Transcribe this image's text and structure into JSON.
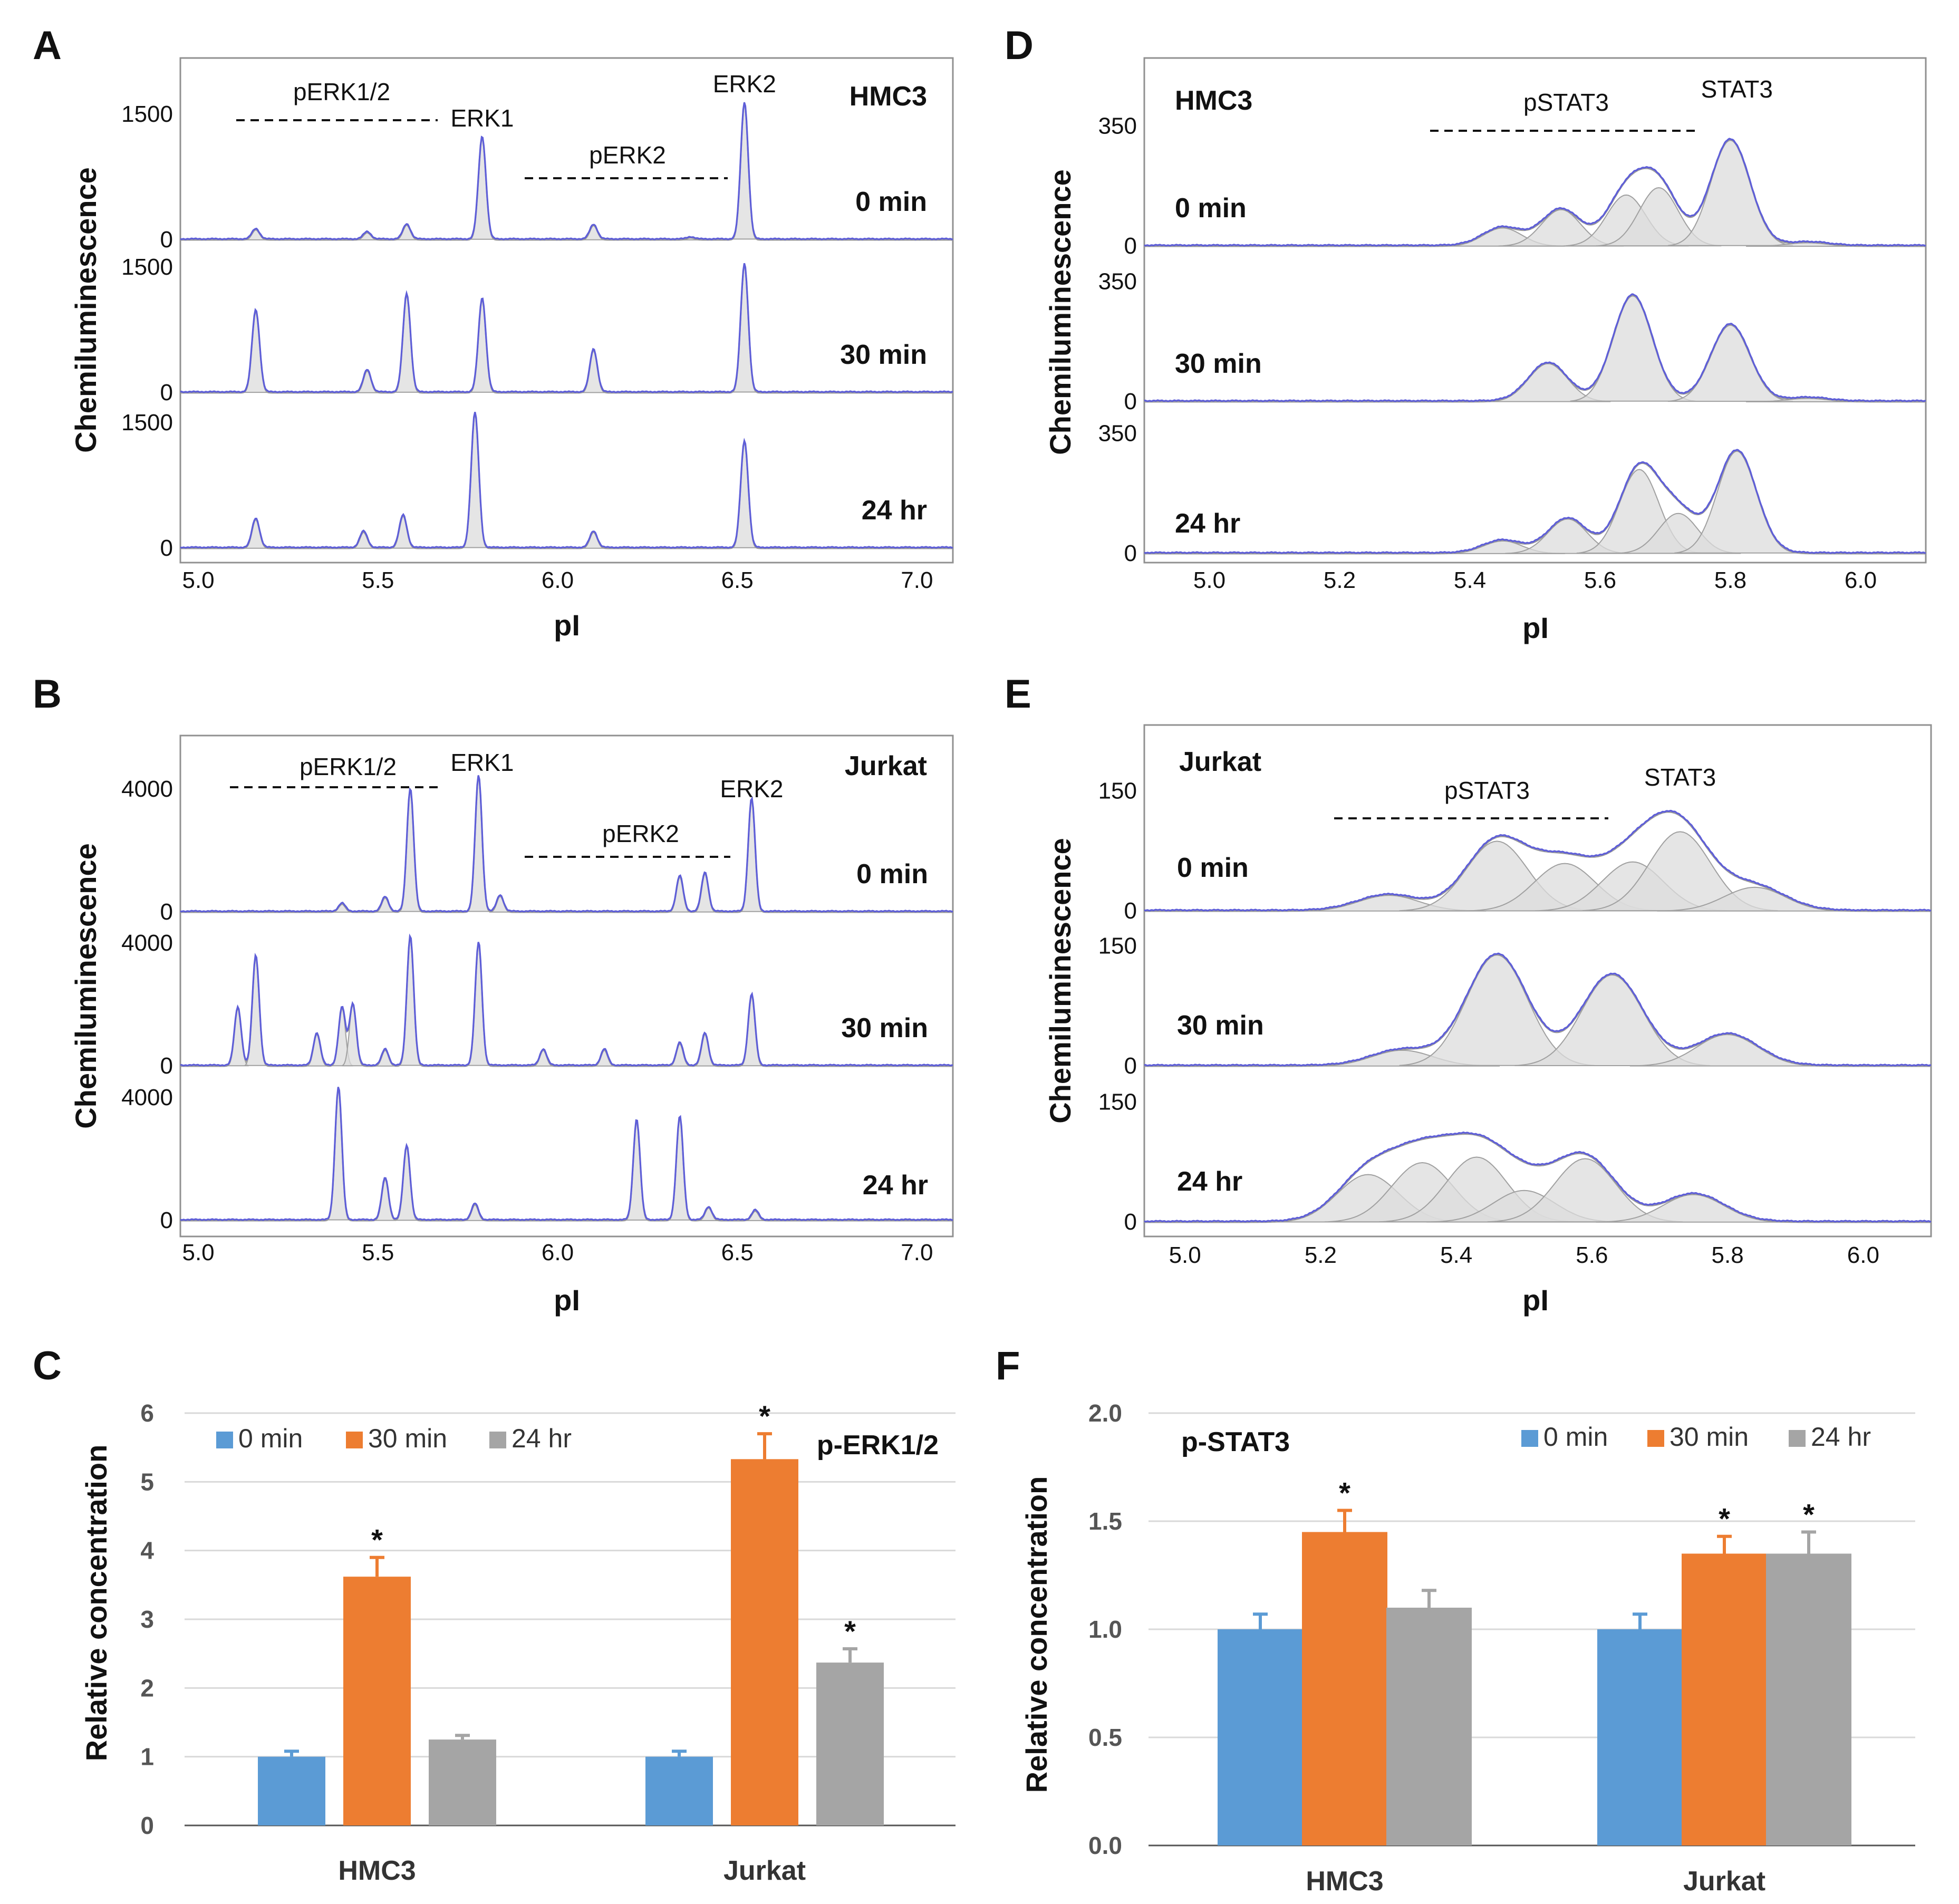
{
  "colors": {
    "trace": "#5e5ed8",
    "fit": "#9a9a9a",
    "peak_fill": "#dcdcdc",
    "bar_0min": "#5b9bd5",
    "bar_30min": "#ed7d31",
    "bar_24hr": "#a5a5a5"
  },
  "panel_labels": {
    "A": "A",
    "B": "B",
    "C": "C",
    "D": "D",
    "E": "E",
    "F": "F"
  },
  "chart_data": [
    {
      "id": "A",
      "type": "line",
      "title": "HMC3",
      "xlabel": "pI",
      "ylabel": "Chemiluminescence",
      "xlim": [
        4.95,
        7.1
      ],
      "xticks": [
        "5.0",
        "5.5",
        "6.0",
        "6.5",
        "7.0"
      ],
      "yticks": [
        "0",
        "1500"
      ],
      "ylim": [
        0,
        1700
      ],
      "series": [
        {
          "name": "0 min",
          "peaks": [
            [
              5.16,
              120
            ],
            [
              5.47,
              85
            ],
            [
              5.58,
              175
            ],
            [
              5.79,
              1200
            ],
            [
              6.1,
              170
            ],
            [
              6.37,
              25
            ],
            [
              6.52,
              1600
            ]
          ]
        },
        {
          "name": "30 min",
          "peaks": [
            [
              5.16,
              960
            ],
            [
              5.47,
              260
            ],
            [
              5.58,
              1150
            ],
            [
              5.79,
              1100
            ],
            [
              6.1,
              500
            ],
            [
              6.52,
              1500
            ]
          ]
        },
        {
          "name": "24 hr",
          "peaks": [
            [
              5.16,
              340
            ],
            [
              5.46,
              190
            ],
            [
              5.57,
              380
            ],
            [
              5.77,
              1580
            ],
            [
              6.1,
              190
            ],
            [
              6.52,
              1250
            ]
          ]
        }
      ],
      "annotations": [
        {
          "text": "pERK1/2",
          "x_from": 5.05,
          "x_to": 5.62
        },
        {
          "text": "ERK1",
          "x": 5.79
        },
        {
          "text": "pERK2",
          "x_from": 5.88,
          "x_to": 6.42
        },
        {
          "text": "ERK2",
          "x": 6.52
        }
      ]
    },
    {
      "id": "B",
      "type": "line",
      "title": "Jurkat",
      "xlabel": "pI",
      "ylabel": "Chemiluminescence",
      "xlim": [
        4.95,
        7.1
      ],
      "xticks": [
        "5.0",
        "5.5",
        "6.0",
        "6.5",
        "7.0"
      ],
      "yticks": [
        "0",
        "4000"
      ],
      "ylim": [
        0,
        4400
      ],
      "series": [
        {
          "name": "0 min",
          "peaks": [
            [
              5.4,
              250
            ],
            [
              5.52,
              450
            ],
            [
              5.59,
              3800
            ],
            [
              5.78,
              4200
            ],
            [
              5.84,
              500
            ],
            [
              6.34,
              1100
            ],
            [
              6.41,
              1200
            ],
            [
              6.54,
              3500
            ]
          ]
        },
        {
          "name": "30 min",
          "peaks": [
            [
              5.11,
              1800
            ],
            [
              5.16,
              3400
            ],
            [
              5.33,
              1000
            ],
            [
              5.4,
              1800
            ],
            [
              5.43,
              1900
            ],
            [
              5.52,
              500
            ],
            [
              5.59,
              4000
            ],
            [
              5.78,
              3800
            ],
            [
              5.96,
              500
            ],
            [
              6.13,
              500
            ],
            [
              6.34,
              700
            ],
            [
              6.41,
              1000
            ],
            [
              6.54,
              2200
            ]
          ]
        },
        {
          "name": "24 hr",
          "peaks": [
            [
              5.39,
              4100
            ],
            [
              5.52,
              1300
            ],
            [
              5.58,
              2300
            ],
            [
              5.77,
              500
            ],
            [
              6.22,
              3100
            ],
            [
              6.34,
              3200
            ],
            [
              6.42,
              400
            ],
            [
              6.55,
              300
            ]
          ]
        }
      ],
      "annotations": [
        {
          "text": "pERK1/2",
          "x_from": 5.05,
          "x_to": 5.62
        },
        {
          "text": "ERK1",
          "x": 5.79
        },
        {
          "text": "pERK2",
          "x_from": 5.88,
          "x_to": 6.42
        },
        {
          "text": "ERK2",
          "x": 6.54
        }
      ]
    },
    {
      "id": "C",
      "type": "bar",
      "title": "p-ERK1/2",
      "ylabel": "Relative concentration",
      "categories": [
        "HMC3",
        "Jurkat"
      ],
      "ylim": [
        0,
        6
      ],
      "yticks": [
        "0",
        "1",
        "2",
        "3",
        "4",
        "5",
        "6"
      ],
      "series": [
        {
          "name": "0 min",
          "values": [
            1.0,
            1.0
          ],
          "errors": [
            0.08,
            0.08
          ],
          "significant": [
            false,
            false
          ]
        },
        {
          "name": "30 min",
          "values": [
            3.62,
            5.33
          ],
          "errors": [
            0.28,
            0.37
          ],
          "significant": [
            true,
            true
          ]
        },
        {
          "name": "24 hr",
          "values": [
            1.25,
            2.37
          ],
          "errors": [
            0.06,
            0.2
          ],
          "significant": [
            false,
            true
          ]
        }
      ],
      "significance_marker": "*"
    },
    {
      "id": "D",
      "type": "line",
      "title": "HMC3",
      "xlabel": "pI",
      "ylabel": "Chemiluminescence",
      "xlim": [
        4.9,
        6.1
      ],
      "xticks": [
        "5.0",
        "5.2",
        "5.4",
        "5.6",
        "5.8",
        "6.0"
      ],
      "yticks": [
        "0",
        "350"
      ],
      "ylim": [
        0,
        380
      ],
      "series": [
        {
          "name": "0 min",
          "peaks": [
            [
              5.45,
              50
            ],
            [
              5.54,
              100
            ],
            [
              5.64,
              140
            ],
            [
              5.69,
              160
            ],
            [
              5.8,
              290
            ],
            [
              5.92,
              10
            ]
          ]
        },
        {
          "name": "30 min",
          "peaks": [
            [
              5.52,
              105
            ],
            [
              5.65,
              290
            ],
            [
              5.8,
              210
            ],
            [
              5.92,
              10
            ]
          ]
        },
        {
          "name": "24 hr",
          "peaks": [
            [
              5.45,
              35
            ],
            [
              5.55,
              95
            ],
            [
              5.66,
              230
            ],
            [
              5.72,
              110
            ],
            [
              5.81,
              280
            ]
          ]
        }
      ],
      "annotations": [
        {
          "text": "pSTAT3",
          "x_from": 5.34,
          "x_to": 5.75
        },
        {
          "text": "STAT3",
          "x": 5.81
        }
      ]
    },
    {
      "id": "E",
      "type": "line",
      "title": "Jurkat",
      "xlabel": "pI",
      "ylabel": "Chemiluminescence",
      "xlim": [
        4.94,
        6.1
      ],
      "xticks": [
        "5.0",
        "5.2",
        "5.4",
        "5.6",
        "5.8",
        "6.0"
      ],
      "yticks": [
        "0",
        "150"
      ],
      "ylim": [
        0,
        175
      ],
      "series": [
        {
          "name": "0 min",
          "peaks": [
            [
              5.3,
              20
            ],
            [
              5.46,
              88
            ],
            [
              5.56,
              60
            ],
            [
              5.66,
              62
            ],
            [
              5.73,
              100
            ],
            [
              5.84,
              30
            ]
          ]
        },
        {
          "name": "30 min",
          "peaks": [
            [
              5.32,
              20
            ],
            [
              5.46,
              140
            ],
            [
              5.63,
              115
            ],
            [
              5.8,
              40
            ]
          ]
        },
        {
          "name": "24 hr",
          "peaks": [
            [
              5.27,
              60
            ],
            [
              5.35,
              75
            ],
            [
              5.43,
              82
            ],
            [
              5.5,
              40
            ],
            [
              5.59,
              80
            ],
            [
              5.75,
              35
            ]
          ]
        }
      ],
      "annotations": [
        {
          "text": "pSTAT3",
          "x_from": 5.19,
          "x_to": 5.61
        },
        {
          "text": "STAT3",
          "x": 5.73
        }
      ]
    },
    {
      "id": "F",
      "type": "bar",
      "title": "p-STAT3",
      "ylabel": "Relative concentration",
      "categories": [
        "HMC3",
        "Jurkat"
      ],
      "ylim": [
        0,
        2.0
      ],
      "yticks": [
        "0.0",
        "0.5",
        "1.0",
        "1.5",
        "2.0"
      ],
      "series": [
        {
          "name": "0 min",
          "values": [
            1.0,
            1.0
          ],
          "errors": [
            0.07,
            0.07
          ],
          "significant": [
            false,
            false
          ]
        },
        {
          "name": "30 min",
          "values": [
            1.45,
            1.35
          ],
          "errors": [
            0.1,
            0.08
          ],
          "significant": [
            true,
            true
          ]
        },
        {
          "name": "24 hr",
          "values": [
            1.1,
            1.35
          ],
          "errors": [
            0.08,
            0.1
          ],
          "significant": [
            false,
            true
          ]
        }
      ],
      "significance_marker": "*"
    }
  ]
}
